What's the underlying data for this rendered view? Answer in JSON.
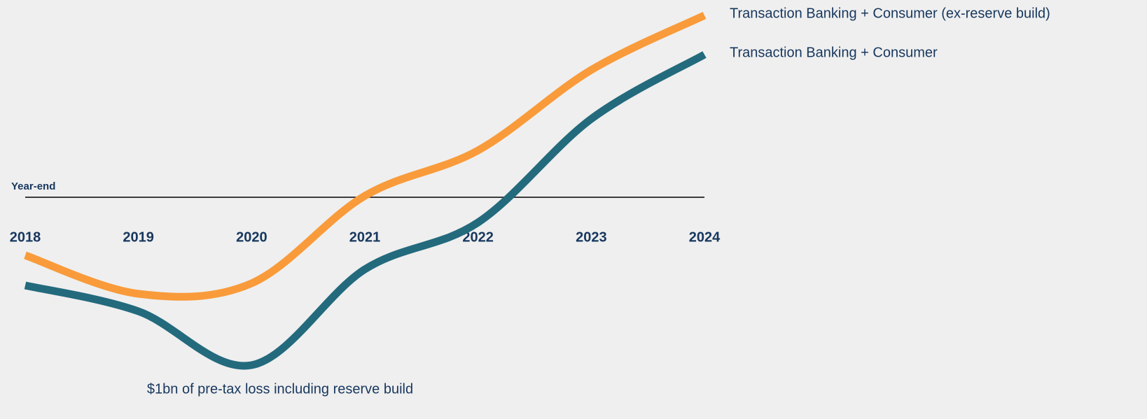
{
  "chart_data": {
    "type": "line",
    "categories": [
      "2018",
      "2019",
      "2020",
      "2021",
      "2022",
      "2023",
      "2024"
    ],
    "series": [
      {
        "name": "Transaction Banking + Consumer (ex-reserve build)",
        "color": "#f99b3a",
        "values": [
          -0.83,
          -1.38,
          -1.23,
          0.02,
          0.67,
          1.82,
          2.6
        ]
      },
      {
        "name": "Transaction Banking + Consumer",
        "color": "#236a7d",
        "values": [
          -1.26,
          -1.63,
          -2.4,
          -1.03,
          -0.36,
          1.12,
          2.04
        ]
      }
    ],
    "ylim": [
      -2.5,
      2.7
    ],
    "reference_line": {
      "value": 0,
      "label": "Year-end"
    },
    "annotation": "$1bn of pre-tax loss including reserve build"
  }
}
